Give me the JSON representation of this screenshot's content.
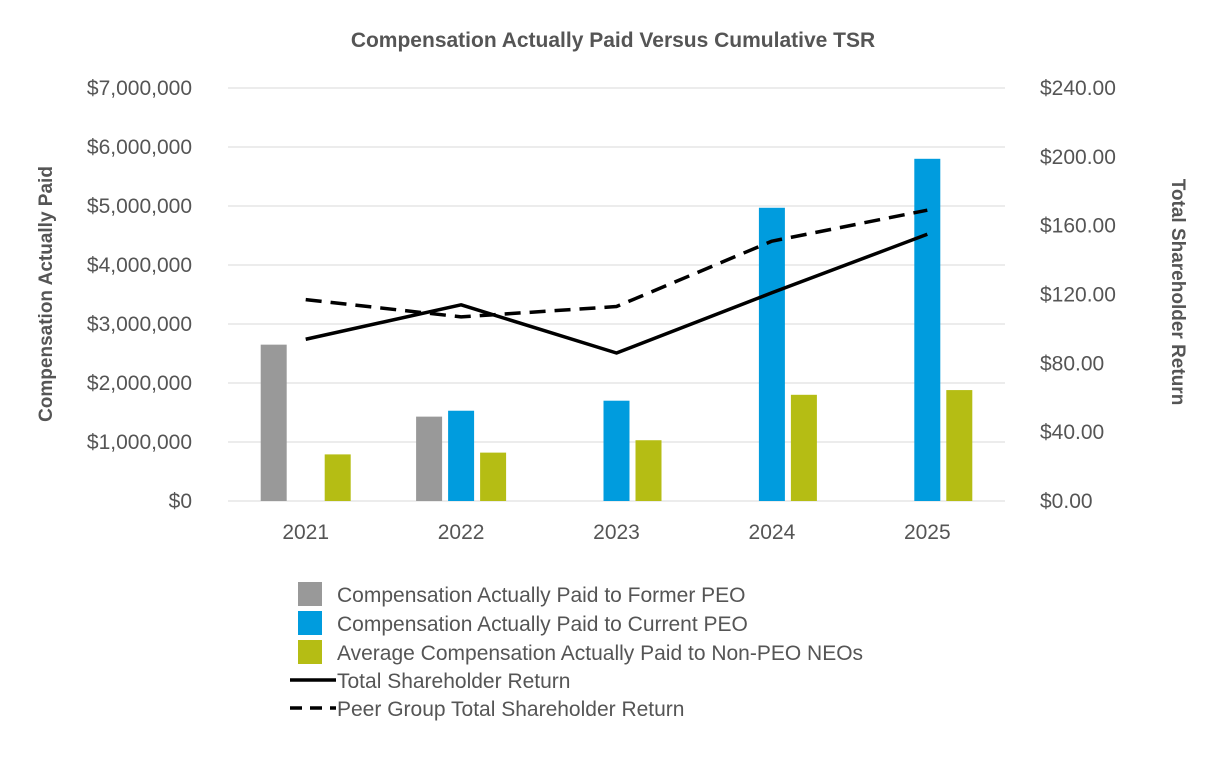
{
  "chart_data": {
    "type": "bar",
    "title": "Compensation Actually Paid Versus Cumulative TSR",
    "categories": [
      "2021",
      "2022",
      "2023",
      "2024",
      "2025"
    ],
    "ylabel": "Compensation Actually Paid",
    "y2label": "Total Shareholder Return",
    "ylim": [
      0,
      7000000
    ],
    "y2lim": [
      0,
      240
    ],
    "yticks": [
      "$0",
      "$1,000,000",
      "$2,000,000",
      "$3,000,000",
      "$4,000,000",
      "$5,000,000",
      "$6,000,000",
      "$7,000,000"
    ],
    "y2ticks": [
      "$0.00",
      "$40.00",
      "$80.00",
      "$120.00",
      "$160.00",
      "$200.00",
      "$240.00"
    ],
    "grid": true,
    "legend_position": "bottom",
    "bar_series": [
      {
        "name": "Compensation Actually Paid to Former PEO",
        "color": "#999999",
        "values": [
          2650000,
          1430000,
          null,
          null,
          null
        ]
      },
      {
        "name": "Compensation Actually Paid to Current PEO",
        "color": "#009cde",
        "values": [
          null,
          1530000,
          1700000,
          4970000,
          5800000
        ]
      },
      {
        "name": "Average Compensation Actually Paid to Non-PEO NEOs",
        "color": "#b5bd14",
        "values": [
          790000,
          820000,
          1030000,
          1800000,
          1880000
        ]
      }
    ],
    "line_series": [
      {
        "name": "Total Shareholder Return",
        "color": "#000000",
        "style": "solid",
        "values": [
          94,
          114,
          86,
          121,
          155
        ]
      },
      {
        "name": "Peer Group Total Shareholder Return",
        "color": "#000000",
        "style": "dashed",
        "values": [
          117,
          107,
          113,
          151,
          169
        ]
      }
    ]
  }
}
